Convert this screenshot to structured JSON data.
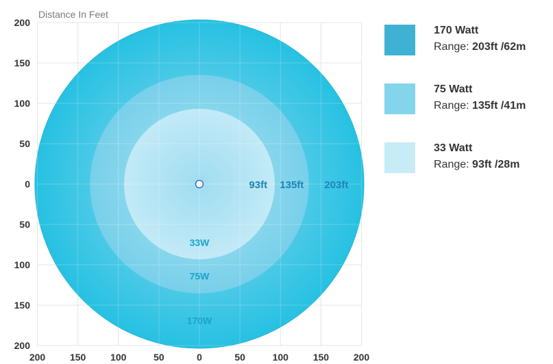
{
  "chart_data": {
    "type": "radial-range",
    "ylabel": "Distance In Feet",
    "x_ticks": [
      "200",
      "150",
      "100",
      "50",
      "0",
      "50",
      "100",
      "150",
      "200"
    ],
    "y_ticks": [
      "200",
      "150",
      "100",
      "50",
      "0",
      "50",
      "100",
      "150",
      "200"
    ],
    "xlim": [
      -200,
      200
    ],
    "ylim": [
      -200,
      200
    ],
    "grid": true,
    "legend_placement": "right",
    "series": [
      {
        "name": "170 Watt",
        "short_label": "170W",
        "radius_ft": 203,
        "radius_label": "203ft",
        "range_prefix": "Range:",
        "range_value": "203ft /62m",
        "color": "#3fb2d4",
        "fill_center": "#7fd4ed",
        "fill_edge": "#08b8de"
      },
      {
        "name": "75 Watt",
        "short_label": "75W",
        "radius_ft": 135,
        "radius_label": "135ft",
        "range_prefix": "Range:",
        "range_value": "135ft /41m",
        "color": "#84d5ec",
        "fill_center": "#a9e3f3",
        "fill_edge": "#7fd1ea"
      },
      {
        "name": "33 Watt",
        "short_label": "33W",
        "radius_ft": 93,
        "radius_label": "93ft",
        "range_prefix": "Range:",
        "range_value": "93ft /28m",
        "color": "#c8ecf7",
        "fill_center": "#9edcf0",
        "fill_edge": "#cbedf8"
      }
    ]
  }
}
